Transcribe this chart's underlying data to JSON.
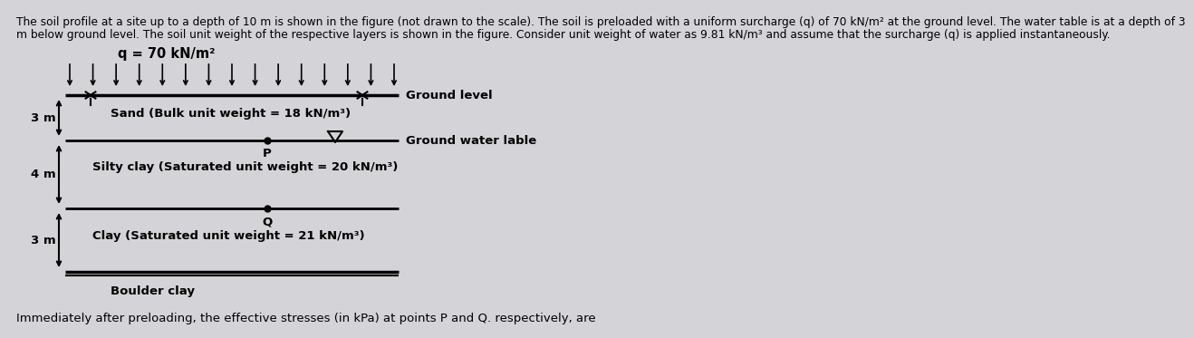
{
  "title_line1": "The soil profile at a site up to a depth of 10 m is shown in the figure (not drawn to the scale). The soil is preloaded with a uniform surcharge (q) of 70 kN/m² at the ground level. The water table is at a depth of 3",
  "title_line2": "m below ground level. The soil unit weight of the respective layers is shown in the figure. Consider unit weight of water as 9.81 kN/m³ and assume that the surcharge (q) is applied instantaneously.",
  "surcharge_label": "q = 70 kN/m²",
  "ground_level_label": "Ground level",
  "gwt_label": "Ground water lable",
  "sand_label": "Sand (Bulk unit weight = 18 kN/m³)",
  "silty_clay_label": "Silty clay (Saturated unit weight = 20 kN/m³)",
  "clay_label": "Clay (Saturated unit weight = 21 kN/m³)",
  "boulder_label": "Boulder clay",
  "layer1_depth": "3 m",
  "layer2_depth": "4 m",
  "layer3_depth": "3 m",
  "point_P": "P",
  "point_Q": "Q",
  "bg_color": "#d3d3d8",
  "text_color": "#000000",
  "title_fontsize": 8.8,
  "label_fontsize": 9.5,
  "depth_fontsize": 9.5,
  "footer_fontsize": 9.5,
  "surcharge_fontsize": 10.5,
  "footer_text": "Immediately after preloading, the effective stresses (in kPa) at points P and Q. respectively, are"
}
